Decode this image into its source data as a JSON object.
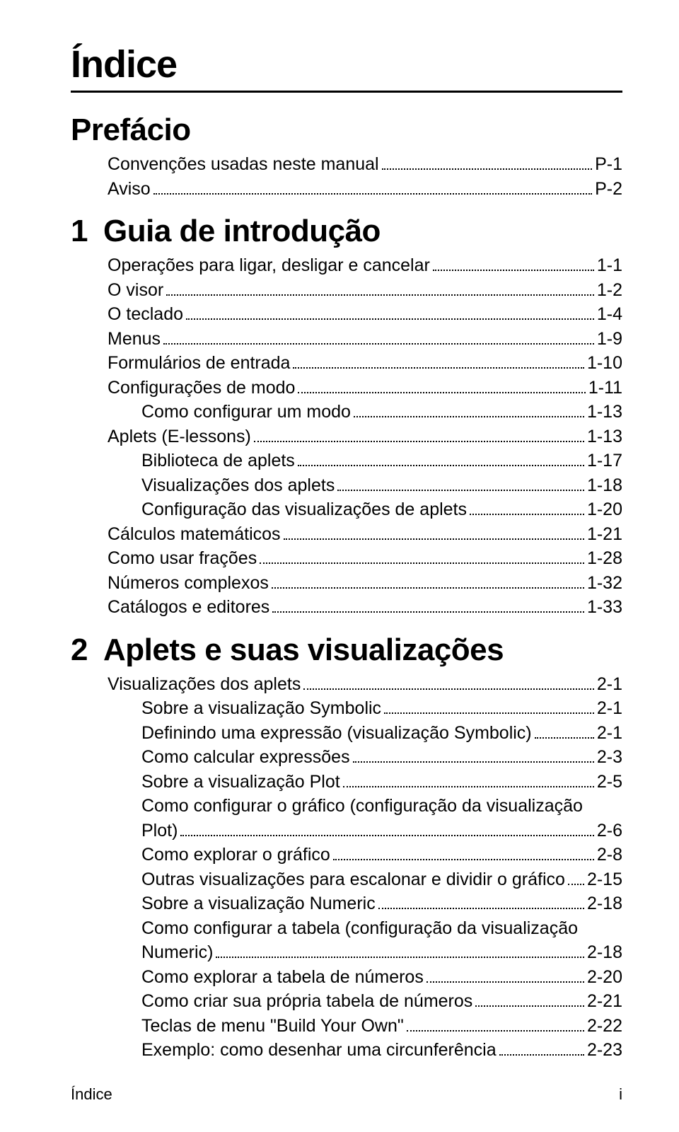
{
  "title": "Índice",
  "footer_left": "Índice",
  "footer_right": "i",
  "sections": [
    {
      "number": "",
      "title": "Prefácio",
      "entries": [
        {
          "indent": 1,
          "label": "Convenções usadas neste manual",
          "page": "P-1"
        },
        {
          "indent": 1,
          "label": "Aviso",
          "page": "P-2"
        }
      ]
    },
    {
      "number": "1",
      "title": "Guia de introdução",
      "entries": [
        {
          "indent": 1,
          "label": "Operações para ligar, desligar e cancelar",
          "page": "1-1"
        },
        {
          "indent": 1,
          "label": "O visor",
          "page": "1-2"
        },
        {
          "indent": 1,
          "label": "O teclado",
          "page": "1-4"
        },
        {
          "indent": 1,
          "label": "Menus",
          "page": "1-9"
        },
        {
          "indent": 1,
          "label": "Formulários de entrada",
          "page": "1-10"
        },
        {
          "indent": 1,
          "label": "Configurações de modo",
          "page": "1-11"
        },
        {
          "indent": 2,
          "label": "Como configurar um modo",
          "page": "1-13"
        },
        {
          "indent": 1,
          "label": "Aplets (E-lessons)",
          "page": "1-13"
        },
        {
          "indent": 2,
          "label": "Biblioteca de aplets",
          "page": "1-17"
        },
        {
          "indent": 2,
          "label": "Visualizações dos aplets",
          "page": "1-18"
        },
        {
          "indent": 2,
          "label": "Configuração das visualizações de aplets",
          "page": "1-20"
        },
        {
          "indent": 1,
          "label": "Cálculos matemáticos",
          "page": "1-21"
        },
        {
          "indent": 1,
          "label": "Como usar frações",
          "page": "1-28"
        },
        {
          "indent": 1,
          "label": "Números complexos",
          "page": "1-32"
        },
        {
          "indent": 1,
          "label": "Catálogos e editores",
          "page": "1-33"
        }
      ]
    },
    {
      "number": "2",
      "title": "Aplets e suas visualizações",
      "entries": [
        {
          "indent": 1,
          "label": "Visualizações dos aplets",
          "page": "2-1"
        },
        {
          "indent": 2,
          "label": "Sobre a visualização Symbolic",
          "page": "2-1"
        },
        {
          "indent": 2,
          "label": "Definindo uma expressão (visualização Symbolic)",
          "page": "2-1"
        },
        {
          "indent": 2,
          "label": "Como calcular expressões",
          "page": "2-3"
        },
        {
          "indent": 2,
          "label": "Sobre a visualização Plot",
          "page": "2-5"
        },
        {
          "indent": 2,
          "label": "Como configurar o gráfico (configuração da visualização Plot)",
          "page": "2-6",
          "wrap": true
        },
        {
          "indent": 2,
          "label": "Como explorar o gráfico",
          "page": "2-8"
        },
        {
          "indent": 2,
          "label": "Outras visualizações para escalonar e dividir o gráfico",
          "page": "2-15"
        },
        {
          "indent": 2,
          "label": "Sobre a visualização Numeric",
          "page": "2-18"
        },
        {
          "indent": 2,
          "label": "Como configurar a tabela (configuração da visualização Numeric)",
          "page": "2-18",
          "wrap": true
        },
        {
          "indent": 2,
          "label": "Como explorar a tabela de números",
          "page": "2-20"
        },
        {
          "indent": 2,
          "label": "Como criar sua própria tabela de números",
          "page": "2-21"
        },
        {
          "indent": 2,
          "label": "Teclas de menu \"Build Your Own\"",
          "page": "2-22"
        },
        {
          "indent": 2,
          "label": "Exemplo: como desenhar uma circunferência",
          "page": "2-23"
        }
      ]
    }
  ]
}
